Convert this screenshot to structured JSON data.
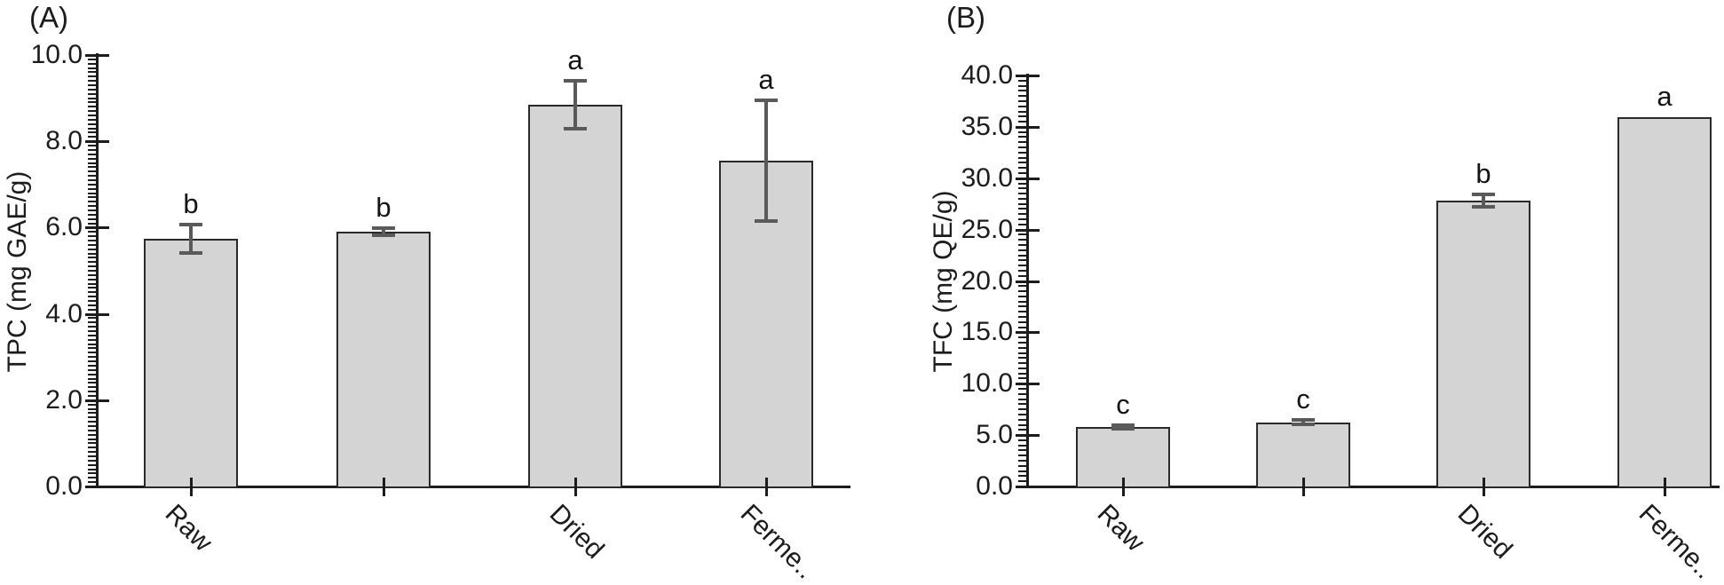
{
  "figure": {
    "background": "#ffffff"
  },
  "colors": {
    "bar_fill": "#d4d4d4",
    "bar_border": "#2a2a2a",
    "error_bar": "#5a5a5a",
    "axis": "#1c1c1c",
    "text": "#1c1c1c"
  },
  "chart_data": [
    {
      "type": "bar",
      "panel_label": "(A)",
      "ylabel": "TPC (mg GAE/g)",
      "xlabel": "",
      "categories": [
        "Raw",
        "",
        "Dried",
        "Ferme.."
      ],
      "values": [
        5.75,
        5.9,
        8.85,
        7.55
      ],
      "errors": [
        0.33,
        0.08,
        0.55,
        1.4
      ],
      "sig_letters": [
        "b",
        "b",
        "a",
        "a"
      ],
      "ylim": [
        0,
        10
      ],
      "ytick_step": 2,
      "yminor_step": 0.1,
      "ytick_decimals": 1,
      "grid": false,
      "legend": null
    },
    {
      "type": "bar",
      "panel_label": "(B)",
      "ylabel": "TFC (mg QE/g)",
      "xlabel": "",
      "categories": [
        "Raw",
        "",
        "Dried",
        "Ferme.."
      ],
      "values": [
        5.8,
        6.25,
        27.8,
        35.9
      ],
      "errors": [
        0.2,
        0.2,
        0.6,
        null
      ],
      "sig_letters": [
        "c",
        "c",
        "b",
        "a"
      ],
      "ylim": [
        0,
        40
      ],
      "ytick_step": 5,
      "yminor_step": 0.5,
      "ytick_decimals": 1,
      "grid": false,
      "legend": null
    }
  ]
}
